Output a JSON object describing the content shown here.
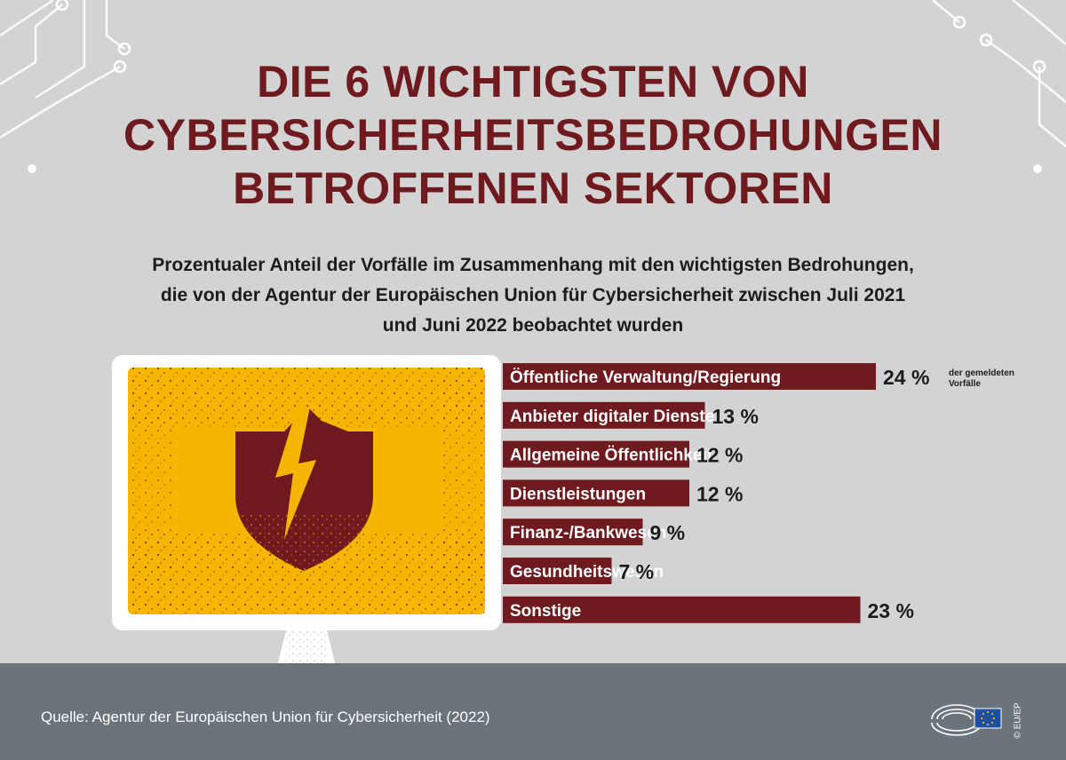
{
  "title_lines": [
    "DIE 6 WICHTIGSTEN VON",
    "CYBERSICHERHEITSBEDROHUNGEN",
    "BETROFFENEN SEKTOREN"
  ],
  "subtitle_lines": [
    "Prozentualer Anteil der Vorfälle im Zusammenhang mit den wichtigsten Bedrohungen,",
    "die von der Agentur der Europäischen Union für Cybersicherheit zwischen Juli 2021",
    "und Juni 2022 beobachtet wurden"
  ],
  "chart_data": {
    "type": "bar",
    "orientation": "horizontal",
    "categories": [
      "Öffentliche Verwaltung/Regierung",
      "Anbieter digitaler Dienste",
      "Allgemeine Öffentlichkeit",
      "Dienstleistungen",
      "Finanz-/Bankwesen",
      "Gesundheitswesen",
      "Sonstige"
    ],
    "values": [
      24,
      13,
      12,
      12,
      9,
      7,
      23
    ],
    "value_labels": [
      "24 %",
      "13 %",
      "12 %",
      "12 %",
      "9 %",
      "7 %",
      "23 %"
    ],
    "annotation": "der gemeldeten Vorfälle",
    "unit": "%",
    "bar_color": "#6e1a1f",
    "grid": false
  },
  "source": "Quelle: Agentur der Europäischen Union für Cybersicherheit (2022)",
  "copyright": "© EU/EP",
  "colors": {
    "title": "#6e1a1f",
    "bar": "#6e1a1f",
    "screen": "#f6b500",
    "background": "#d3d3d3",
    "footer": "#6c747b"
  },
  "icons": {
    "illustration": "monitor-cracked-shield-icon",
    "logo": "european-parliament-logo-icon"
  }
}
